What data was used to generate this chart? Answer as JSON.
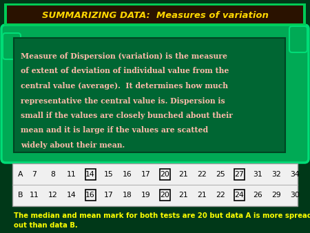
{
  "title": "SUMMARIZING DATA:  Measures of variation",
  "title_color": "#FFD700",
  "title_bg": "#2A1200",
  "title_border_outer": "#00CC55",
  "title_border_inner": "#00AA44",
  "bg_color": "#003818",
  "scroll_bg": "#00AA55",
  "scroll_border": "#00DD77",
  "body_bg": "#006633",
  "body_text_line1": "Measure of Dispersion (variation) is the measure",
  "body_text_line2": "of extent of deviation of individual value from the",
  "body_text_line3": "central value (average).  It determines how much",
  "body_text_line4": "representative the central value is. Dispersion is",
  "body_text_line5": "small if the values are closely bunched about their",
  "body_text_line6": "mean and it is large if the values are scatted",
  "body_text_line7": "widely about their mean.",
  "body_text_color": "#FFBBAA",
  "row_A": [
    7,
    8,
    11,
    14,
    15,
    16,
    17,
    20,
    21,
    22,
    25,
    27,
    31,
    32,
    34
  ],
  "row_B": [
    11,
    12,
    14,
    16,
    17,
    18,
    19,
    20,
    21,
    21,
    22,
    24,
    26,
    29,
    30
  ],
  "row_A_boxed_idx": [
    3,
    7,
    11
  ],
  "row_B_boxed_idx": [
    3,
    7,
    11
  ],
  "footnote_line1": "The median and mean mark for both tests are 20 but data A is more spread",
  "footnote_line2": "out than data B.",
  "footnote_color": "#FFFF00"
}
